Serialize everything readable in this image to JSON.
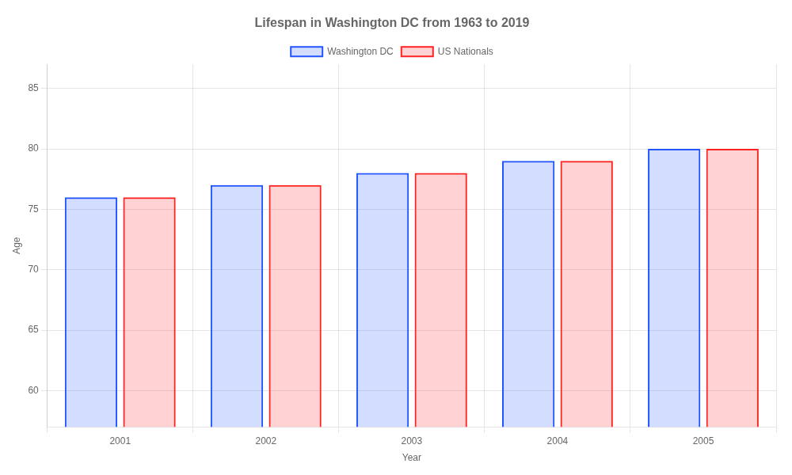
{
  "chart_data": {
    "type": "bar",
    "title": "Lifespan in Washington DC from 1963 to 2019",
    "xlabel": "Year",
    "ylabel": "Age",
    "categories": [
      "2001",
      "2002",
      "2003",
      "2004",
      "2005"
    ],
    "series": [
      {
        "name": "Washington DC",
        "color": "#2255ff",
        "values": [
          76,
          77,
          78,
          79,
          80
        ]
      },
      {
        "name": "US Nationals",
        "color": "#ff2222",
        "values": [
          76,
          77,
          78,
          79,
          80
        ]
      }
    ],
    "ylim": [
      57,
      87
    ],
    "yticks": [
      60,
      65,
      70,
      75,
      80,
      85
    ],
    "grid": true,
    "legend": "top"
  }
}
